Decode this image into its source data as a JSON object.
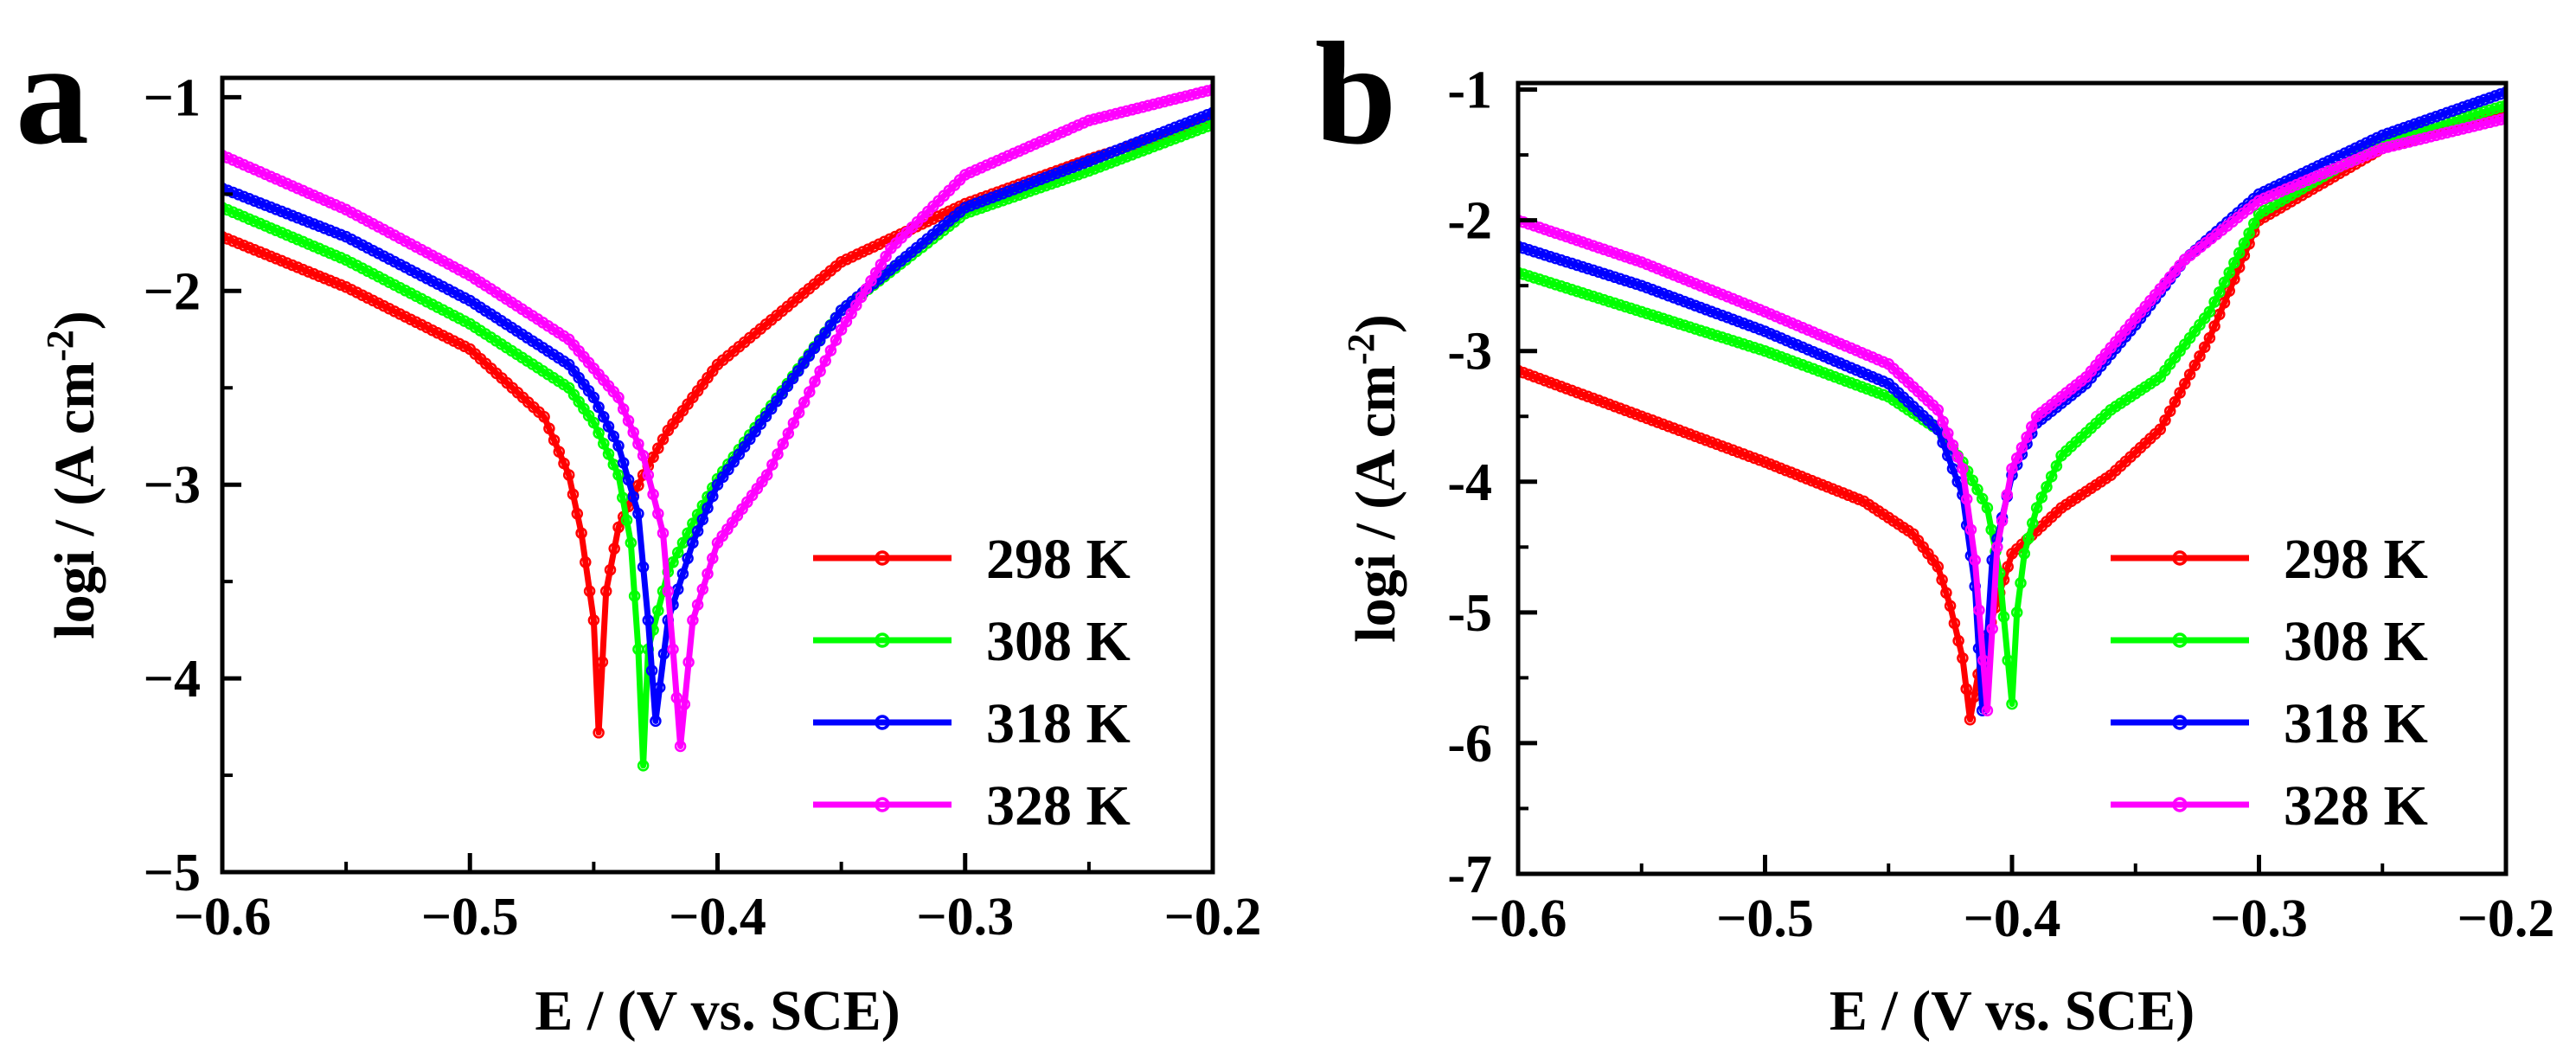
{
  "chart_data": [
    {
      "panel": "a",
      "type": "line",
      "xlabel": "E / (V vs. SCE)",
      "ylabel": "logi / (A cm",
      "ylabel_sup": "-2",
      "ylabel_close": ")",
      "xlim": [
        -0.6,
        -0.2
      ],
      "ylim": [
        -5,
        -0.9
      ],
      "xticks": [
        -0.6,
        -0.5,
        -0.4,
        -0.3,
        -0.2
      ],
      "xtick_labels": [
        "−0.6",
        "−0.5",
        "−0.4",
        "−0.3",
        "−0.2"
      ],
      "yticks": [
        -5,
        -4,
        -3,
        -2,
        -1
      ],
      "ytick_labels": [
        "−5",
        "−4",
        "−3",
        "−2",
        "−1"
      ],
      "legend_position": "lower-right",
      "series": [
        {
          "name": "298 K",
          "color": "#ff0000",
          "x": [
            -0.6,
            -0.55,
            -0.5,
            -0.47,
            -0.46,
            -0.455,
            -0.45,
            -0.448,
            -0.445,
            -0.44,
            -0.43,
            -0.42,
            -0.4,
            -0.35,
            -0.3,
            -0.25,
            -0.2
          ],
          "y": [
            -1.72,
            -1.98,
            -2.3,
            -2.65,
            -2.95,
            -3.25,
            -3.7,
            -4.28,
            -3.55,
            -3.22,
            -2.95,
            -2.72,
            -2.38,
            -1.85,
            -1.55,
            -1.32,
            -1.12
          ]
        },
        {
          "name": "308 K",
          "color": "#00ff00",
          "x": [
            -0.6,
            -0.55,
            -0.5,
            -0.46,
            -0.45,
            -0.44,
            -0.435,
            -0.432,
            -0.43,
            -0.428,
            -0.42,
            -0.41,
            -0.4,
            -0.35,
            -0.3,
            -0.25,
            -0.2
          ],
          "y": [
            -1.57,
            -1.84,
            -2.17,
            -2.5,
            -2.68,
            -2.95,
            -3.3,
            -3.85,
            -4.45,
            -3.85,
            -3.45,
            -3.2,
            -2.97,
            -2.1,
            -1.6,
            -1.38,
            -1.14
          ]
        },
        {
          "name": "318 K",
          "color": "#0000ff",
          "x": [
            -0.6,
            -0.55,
            -0.5,
            -0.46,
            -0.45,
            -0.44,
            -0.432,
            -0.428,
            -0.425,
            -0.42,
            -0.41,
            -0.4,
            -0.35,
            -0.3,
            -0.25,
            -0.2
          ],
          "y": [
            -1.47,
            -1.72,
            -2.05,
            -2.38,
            -2.55,
            -2.8,
            -3.15,
            -3.7,
            -4.22,
            -3.7,
            -3.3,
            -3.0,
            -2.1,
            -1.57,
            -1.33,
            -1.08
          ]
        },
        {
          "name": "328 K",
          "color": "#ff00ff",
          "x": [
            -0.6,
            -0.55,
            -0.5,
            -0.46,
            -0.44,
            -0.43,
            -0.422,
            -0.418,
            -0.415,
            -0.41,
            -0.4,
            -0.38,
            -0.35,
            -0.33,
            -0.3,
            -0.25,
            -0.2
          ],
          "y": [
            -1.3,
            -1.58,
            -1.92,
            -2.25,
            -2.55,
            -2.85,
            -3.25,
            -3.85,
            -4.35,
            -3.7,
            -3.3,
            -2.95,
            -2.2,
            -1.78,
            -1.4,
            -1.12,
            -0.96
          ]
        }
      ]
    },
    {
      "panel": "b",
      "type": "line",
      "xlabel": "E / (V vs. SCE)",
      "ylabel": "logi / (A cm",
      "ylabel_sup": "-2",
      "ylabel_close": ")",
      "xlim": [
        -0.6,
        -0.2
      ],
      "ylim": [
        -7,
        -0.95
      ],
      "xticks": [
        -0.6,
        -0.5,
        -0.4,
        -0.3,
        -0.2
      ],
      "xtick_labels": [
        "−0.6",
        "−0.5",
        "−0.4",
        "−0.3",
        "−0.2"
      ],
      "yticks": [
        -7,
        -6,
        -5,
        -4,
        -3,
        -2,
        -1
      ],
      "ytick_labels": [
        "-7",
        "-6",
        "-5",
        "-4",
        "-3",
        "-2",
        "-1"
      ],
      "legend_position": "lower-right",
      "series": [
        {
          "name": "298 K",
          "color": "#ff0000",
          "x": [
            -0.6,
            -0.55,
            -0.5,
            -0.46,
            -0.44,
            -0.43,
            -0.425,
            -0.42,
            -0.417,
            -0.412,
            -0.405,
            -0.4,
            -0.38,
            -0.36,
            -0.34,
            -0.32,
            -0.3,
            -0.25,
            -0.2
          ],
          "y": [
            -3.15,
            -3.5,
            -3.85,
            -4.15,
            -4.4,
            -4.65,
            -4.95,
            -5.35,
            -5.82,
            -5.3,
            -4.85,
            -4.55,
            -4.2,
            -3.95,
            -3.6,
            -2.9,
            -2.0,
            -1.45,
            -1.15
          ]
        },
        {
          "name": "308 K",
          "color": "#00ff00",
          "x": [
            -0.6,
            -0.55,
            -0.5,
            -0.45,
            -0.43,
            -0.42,
            -0.41,
            -0.405,
            -0.4,
            -0.398,
            -0.395,
            -0.39,
            -0.38,
            -0.36,
            -0.34,
            -0.32,
            -0.3,
            -0.25,
            -0.2
          ],
          "y": [
            -2.4,
            -2.7,
            -3.0,
            -3.35,
            -3.6,
            -3.85,
            -4.2,
            -4.7,
            -5.7,
            -5.0,
            -4.55,
            -4.2,
            -3.8,
            -3.45,
            -3.2,
            -2.7,
            -1.95,
            -1.4,
            -1.12
          ]
        },
        {
          "name": "318 K",
          "color": "#0000ff",
          "x": [
            -0.6,
            -0.55,
            -0.5,
            -0.45,
            -0.43,
            -0.42,
            -0.415,
            -0.412,
            -0.408,
            -0.4,
            -0.39,
            -0.37,
            -0.35,
            -0.33,
            -0.3,
            -0.25,
            -0.2
          ],
          "y": [
            -2.2,
            -2.5,
            -2.85,
            -3.25,
            -3.6,
            -4.1,
            -4.8,
            -5.75,
            -4.6,
            -3.95,
            -3.55,
            -3.25,
            -2.8,
            -2.3,
            -1.8,
            -1.35,
            -1.02
          ]
        },
        {
          "name": "328 K",
          "color": "#ff00ff",
          "x": [
            -0.6,
            -0.55,
            -0.5,
            -0.45,
            -0.43,
            -0.42,
            -0.415,
            -0.41,
            -0.406,
            -0.4,
            -0.39,
            -0.37,
            -0.35,
            -0.33,
            -0.3,
            -0.25,
            -0.2
          ],
          "y": [
            -2.0,
            -2.32,
            -2.7,
            -3.1,
            -3.45,
            -3.9,
            -4.6,
            -5.75,
            -4.5,
            -3.9,
            -3.5,
            -3.2,
            -2.75,
            -2.3,
            -1.85,
            -1.45,
            -1.22
          ]
        }
      ]
    }
  ]
}
